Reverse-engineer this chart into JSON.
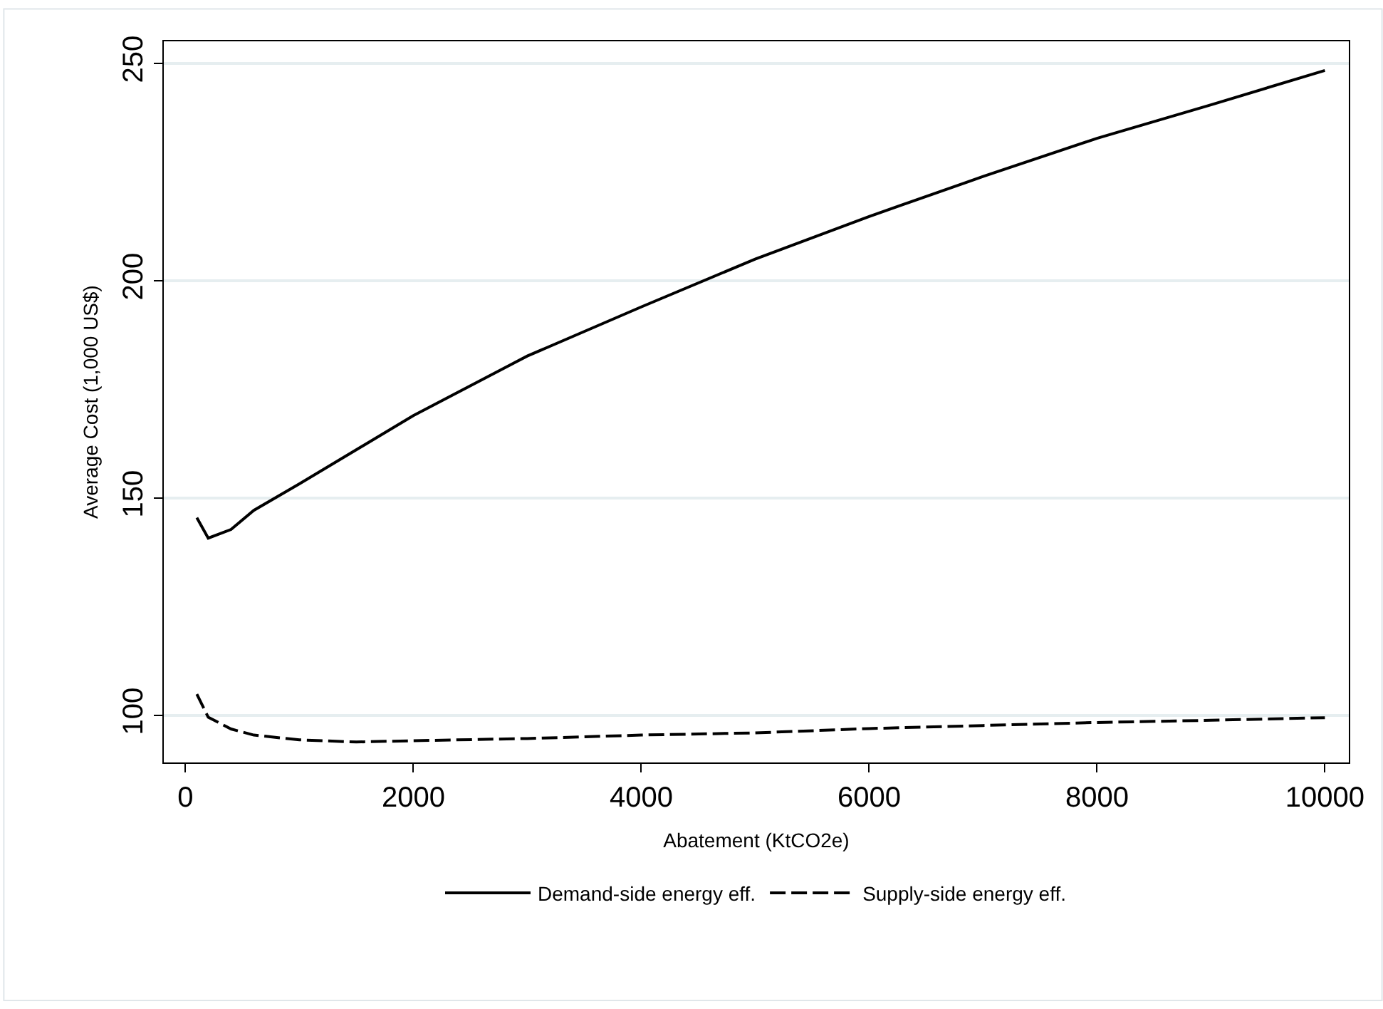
{
  "chart_data": {
    "type": "line",
    "xlabel": "Abatement (KtCO2e)",
    "ylabel": "Average Cost (1,000 US$)",
    "xlim": [
      -190,
      10210
    ],
    "ylim": [
      89.2,
      255.1
    ],
    "xticks": [
      0,
      2000,
      4000,
      6000,
      8000,
      10000
    ],
    "yticks": [
      100,
      150,
      200,
      250
    ],
    "grid": "y",
    "legend": "bottom",
    "marker": "none",
    "series": [
      {
        "name": "Demand-side energy eff.",
        "color": "#000000",
        "line_style": "solid",
        "x": [
          100,
          200,
          400,
          600,
          1000,
          2000,
          3000,
          4000,
          5000,
          6000,
          7000,
          8000,
          9000,
          10000
        ],
        "values": [
          145.5,
          140.8,
          142.8,
          147.2,
          153.3,
          169,
          182.7,
          194,
          205,
          214.8,
          224,
          232.8,
          240.5,
          248.4
        ]
      },
      {
        "name": "Supply-side energy eff.",
        "color": "#000000",
        "line_style": "dashed",
        "x": [
          100,
          200,
          400,
          600,
          1000,
          1500,
          2000,
          3000,
          4000,
          5000,
          6000,
          7000,
          8000,
          9000,
          10000
        ],
        "values": [
          104.9,
          99.6,
          96.9,
          95.5,
          94.4,
          93.9,
          94.2,
          94.7,
          95.5,
          96,
          97,
          97.7,
          98.4,
          98.9,
          99.5
        ]
      }
    ]
  }
}
